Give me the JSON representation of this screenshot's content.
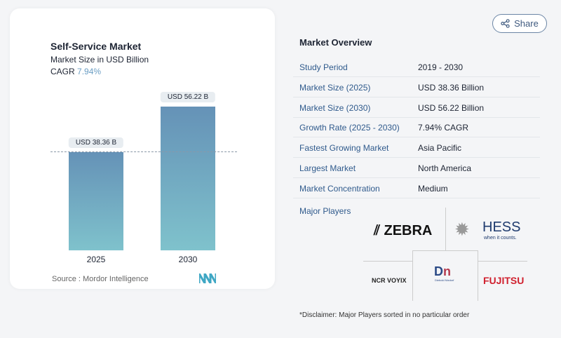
{
  "chart_card": {
    "title": "Self-Service Market",
    "subtitle": "Market Size in USD Billion",
    "cagr_label": "CAGR",
    "cagr_value": "7.94%",
    "source": "Source :  Mordor Intelligence"
  },
  "chart_data": {
    "type": "bar",
    "title": "Self-Service Market",
    "subtitle": "Market Size in USD Billion",
    "categories": [
      "2025",
      "2030"
    ],
    "values": [
      38.36,
      56.22
    ],
    "data_labels": [
      "USD 38.36 B",
      "USD 56.22 B"
    ],
    "ylim": [
      0,
      60
    ],
    "grid": false,
    "colors": {
      "bar_top": "#6592b7",
      "bar_bottom": "#7fc2cc"
    }
  },
  "share": {
    "label": "Share",
    "icon": "share-icon"
  },
  "overview": {
    "title": "Market Overview",
    "rows": [
      {
        "k": "Study Period",
        "v": "2019 - 2030"
      },
      {
        "k": "Market Size (2025)",
        "v": "USD 38.36 Billion"
      },
      {
        "k": "Market Size (2030)",
        "v": "USD 56.22 Billion"
      },
      {
        "k": "Growth Rate (2025 - 2030)",
        "v": "7.94% CAGR"
      },
      {
        "k": "Fastest Growing Market",
        "v": "Asia Pacific"
      },
      {
        "k": "Largest Market",
        "v": "North America"
      },
      {
        "k": "Market Concentration",
        "v": "Medium"
      }
    ],
    "major_players_label": "Major Players",
    "players": [
      "ZEBRA",
      "HESS",
      "NCR VOYIX",
      "Diebold Nixdorf",
      "FUJITSU"
    ],
    "hess_tagline": "when it counts.",
    "disclaimer": "*Disclaimer: Major Players sorted in no particular order"
  },
  "colors": {
    "accent": "#2f5a8c"
  }
}
